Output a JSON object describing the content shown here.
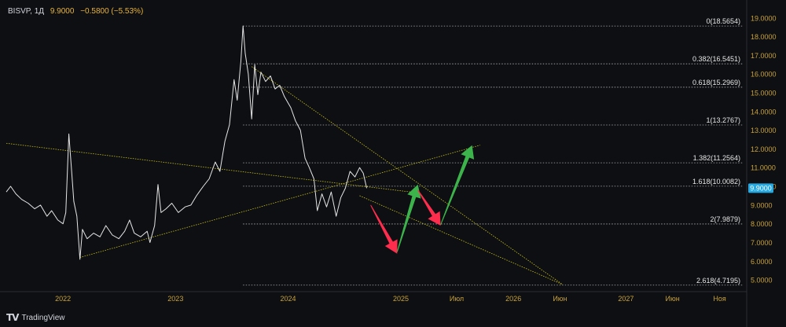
{
  "header": {
    "symbol": "BISVP, 1Д",
    "price": "9.9000",
    "change": "−0.5800 (−5.53%)"
  },
  "brand": {
    "name": "TradingView",
    "logo": "tradingview-logo-icon"
  },
  "colors": {
    "background": "#0e0f13",
    "price_line": "#e6e6e6",
    "trendline": "#c9c21a",
    "fib_line": "#b0b0b0",
    "axis_text": "#c8a23a",
    "arrow_red": "#ff2d4d",
    "arrow_green": "#3cb44b",
    "price_badge": "#26a9e0"
  },
  "chart_data": {
    "type": "line",
    "ylim": [
      4.5,
      19.2
    ],
    "xlim": [
      "2021-07-01",
      "2028-01-15"
    ],
    "y_ticks": [
      "5.0000",
      "6.0000",
      "7.0000",
      "8.0000",
      "9.0000",
      "10.0000",
      "11.0000",
      "12.0000",
      "13.0000",
      "14.0000",
      "15.0000",
      "16.0000",
      "17.0000",
      "18.0000",
      "19.0000"
    ],
    "x_ticks": [
      {
        "label": "2022",
        "date": "2022-01-01"
      },
      {
        "label": "2023",
        "date": "2023-01-01"
      },
      {
        "label": "2024",
        "date": "2024-01-01"
      },
      {
        "label": "2025",
        "date": "2025-01-01"
      },
      {
        "label": "Июл",
        "date": "2025-07-01"
      },
      {
        "label": "2026",
        "date": "2026-01-01"
      },
      {
        "label": "Июн",
        "date": "2026-06-01"
      },
      {
        "label": "2027",
        "date": "2027-01-01"
      },
      {
        "label": "Июн",
        "date": "2027-06-01"
      },
      {
        "label": "Ноя",
        "date": "2027-11-01"
      }
    ],
    "current_price": {
      "value": 9.9,
      "label": "9.9000"
    },
    "fib_levels": [
      {
        "label": "0(18.5654)",
        "value": 18.5654
      },
      {
        "label": "0.382(16.5451)",
        "value": 16.5451
      },
      {
        "label": "0.618(15.2969)",
        "value": 15.2969
      },
      {
        "label": "1(13.2767)",
        "value": 13.2767
      },
      {
        "label": "1.382(11.2564)",
        "value": 11.2564
      },
      {
        "label": "1.618(10.0082)",
        "value": 10.0082
      },
      {
        "label": "2(7.9879)",
        "value": 7.9879
      },
      {
        "label": "2.618(4.7195)",
        "value": 4.7195
      }
    ],
    "series": [
      {
        "values": [
          [
            "2021-07-01",
            9.7
          ],
          [
            "2021-07-15",
            10.0
          ],
          [
            "2021-08-01",
            9.6
          ],
          [
            "2021-08-20",
            9.3
          ],
          [
            "2021-09-10",
            9.1
          ],
          [
            "2021-10-01",
            8.8
          ],
          [
            "2021-10-20",
            9.0
          ],
          [
            "2021-11-10",
            8.4
          ],
          [
            "2021-11-25",
            8.7
          ],
          [
            "2021-12-15",
            8.2
          ],
          [
            "2022-01-01",
            8.0
          ],
          [
            "2022-01-10",
            8.6
          ],
          [
            "2022-01-20",
            12.8
          ],
          [
            "2022-01-28",
            11.0
          ],
          [
            "2022-02-05",
            9.2
          ],
          [
            "2022-02-15",
            8.4
          ],
          [
            "2022-02-25",
            6.1
          ],
          [
            "2022-03-05",
            7.7
          ],
          [
            "2022-03-20",
            7.2
          ],
          [
            "2022-04-10",
            7.5
          ],
          [
            "2022-05-01",
            7.3
          ],
          [
            "2022-05-20",
            7.9
          ],
          [
            "2022-06-10",
            7.4
          ],
          [
            "2022-07-01",
            7.2
          ],
          [
            "2022-07-20",
            7.6
          ],
          [
            "2022-08-05",
            8.2
          ],
          [
            "2022-08-20",
            7.5
          ],
          [
            "2022-09-10",
            7.3
          ],
          [
            "2022-10-01",
            7.6
          ],
          [
            "2022-10-10",
            7.0
          ],
          [
            "2022-10-25",
            7.9
          ],
          [
            "2022-11-05",
            10.1
          ],
          [
            "2022-11-15",
            8.6
          ],
          [
            "2022-12-01",
            8.8
          ],
          [
            "2022-12-20",
            9.1
          ],
          [
            "2023-01-10",
            8.6
          ],
          [
            "2023-02-01",
            8.9
          ],
          [
            "2023-02-20",
            9.0
          ],
          [
            "2023-03-10",
            9.5
          ],
          [
            "2023-04-01",
            10.0
          ],
          [
            "2023-04-20",
            10.4
          ],
          [
            "2023-05-10",
            11.3
          ],
          [
            "2023-05-25",
            10.8
          ],
          [
            "2023-06-10",
            12.4
          ],
          [
            "2023-06-25",
            13.3
          ],
          [
            "2023-07-10",
            15.7
          ],
          [
            "2023-07-20",
            14.6
          ],
          [
            "2023-08-01",
            16.7
          ],
          [
            "2023-08-08",
            18.57
          ],
          [
            "2023-08-15",
            17.1
          ],
          [
            "2023-08-25",
            16.0
          ],
          [
            "2023-09-05",
            13.6
          ],
          [
            "2023-09-15",
            16.5
          ],
          [
            "2023-09-25",
            14.9
          ],
          [
            "2023-10-05",
            16.1
          ],
          [
            "2023-10-20",
            15.6
          ],
          [
            "2023-11-05",
            15.9
          ],
          [
            "2023-11-20",
            15.2
          ],
          [
            "2023-12-05",
            15.4
          ],
          [
            "2023-12-20",
            14.8
          ],
          [
            "2024-01-10",
            14.2
          ],
          [
            "2024-01-25",
            13.5
          ],
          [
            "2024-02-10",
            13.0
          ],
          [
            "2024-02-25",
            11.5
          ],
          [
            "2024-03-10",
            11.0
          ],
          [
            "2024-03-25",
            10.4
          ],
          [
            "2024-04-05",
            8.7
          ],
          [
            "2024-04-20",
            9.6
          ],
          [
            "2024-05-05",
            8.9
          ],
          [
            "2024-05-20",
            9.7
          ],
          [
            "2024-06-05",
            8.4
          ],
          [
            "2024-06-20",
            9.4
          ],
          [
            "2024-07-05",
            9.9
          ],
          [
            "2024-07-20",
            10.8
          ],
          [
            "2024-08-05",
            10.5
          ],
          [
            "2024-08-20",
            11.0
          ],
          [
            "2024-09-01",
            10.7
          ],
          [
            "2024-09-12",
            9.9
          ]
        ]
      }
    ],
    "trendlines": [
      {
        "from": [
          "2021-07-01",
          12.3
        ],
        "to": [
          "2025-02-01",
          9.7
        ]
      },
      {
        "from": [
          "2022-02-25",
          6.2
        ],
        "to": [
          "2025-09-15",
          12.2
        ]
      },
      {
        "from": [
          "2023-09-05",
          16.4
        ],
        "to": [
          "2026-06-10",
          4.75
        ]
      },
      {
        "from": [
          "2024-08-20",
          9.5
        ],
        "to": [
          "2026-06-10",
          4.75
        ]
      }
    ],
    "arrows": [
      {
        "color": "red",
        "from": [
          "2024-09-25",
          9.0
        ],
        "to": [
          "2024-12-20",
          6.4
        ]
      },
      {
        "color": "green",
        "from": [
          "2024-12-20",
          6.5
        ],
        "to": [
          "2025-02-25",
          10.1
        ]
      },
      {
        "color": "red",
        "from": [
          "2025-02-25",
          9.8
        ],
        "to": [
          "2025-05-10",
          7.9
        ]
      },
      {
        "color": "green",
        "from": [
          "2025-05-10",
          7.95
        ],
        "to": [
          "2025-08-20",
          12.2
        ]
      }
    ]
  }
}
